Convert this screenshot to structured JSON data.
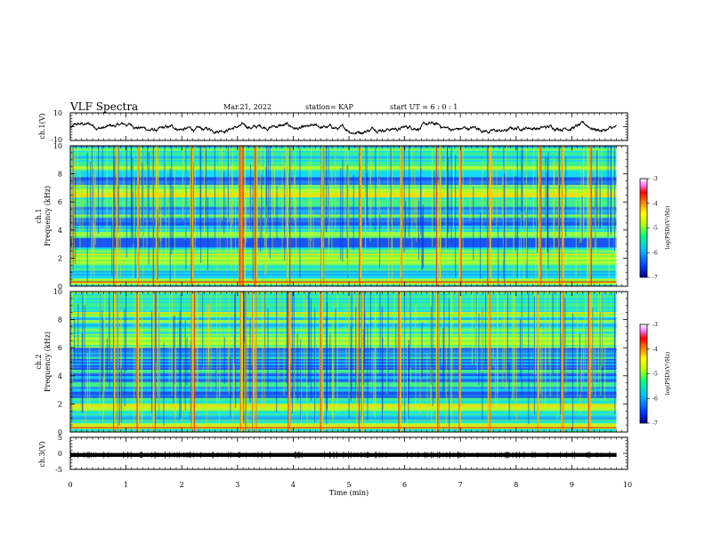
{
  "header": {
    "title": "VLF Spectra",
    "date": "Mar.21, 2022",
    "station": "station= KAP",
    "start": "start  UT =   6 : 0 : 1"
  },
  "chart_data": [
    {
      "type": "line",
      "panel": "ch1-waveform",
      "ylabel": "ch.1(V)",
      "xlim": [
        0,
        10
      ],
      "ylim": [
        -10,
        10
      ],
      "ytick_labels": [
        "-10",
        "10"
      ],
      "data_extent_min": 9.8,
      "typical_range": [
        -6,
        4
      ],
      "color": "#000000"
    },
    {
      "type": "heatmap",
      "panel": "ch1-spectrogram",
      "ylabel": "ch.1",
      "ylabel2": "Frequency (kHz)",
      "xlim": [
        0,
        10
      ],
      "ylim": [
        0,
        10
      ],
      "ytick_labels": [
        "0",
        "2",
        "4",
        "6",
        "8",
        "10"
      ],
      "data_extent_min": 9.8,
      "colorbar": {
        "label": "log(PSD)(V²/Hz)",
        "range": [
          -7,
          -3
        ],
        "tick_labels": [
          "-3",
          "-4",
          "-5",
          "-6",
          "-7"
        ],
        "colors": [
          "#000090",
          "#0040ff",
          "#00c0ff",
          "#00ff80",
          "#c0ff00",
          "#ffff00",
          "#ff8000",
          "#ff0000",
          "#ff80ff",
          "#ffffff"
        ]
      },
      "strong_bands_khz": [
        [
          0.2,
          0.6
        ],
        [
          1.7,
          2.3
        ],
        [
          6.3,
          6.9
        ],
        [
          8.3,
          8.6
        ]
      ],
      "weak_bands_khz": [
        [
          2.8,
          3.4
        ],
        [
          4.3,
          4.9
        ],
        [
          5.3,
          5.7
        ],
        [
          7.2,
          7.8
        ]
      ],
      "vertical_bursts_min": [
        0.8,
        1.2,
        1.5,
        2.2,
        3.05,
        3.1,
        3.3,
        3.9,
        4.5,
        5.2,
        5.9,
        6.6,
        7.0,
        7.5,
        8.4,
        8.8,
        9.3
      ]
    },
    {
      "type": "heatmap",
      "panel": "ch2-spectrogram",
      "ylabel": "ch.2",
      "ylabel2": "Frequency (kHz)",
      "xlim": [
        0,
        10
      ],
      "ylim": [
        0,
        10
      ],
      "ytick_labels": [
        "0",
        "2",
        "4",
        "6",
        "8",
        "10"
      ],
      "data_extent_min": 9.8,
      "colorbar": {
        "label": "log(PSD)(V²/Hz)",
        "range": [
          -7,
          -3
        ],
        "tick_labels": [
          "-3",
          "-4",
          "-5",
          "-6",
          "-7"
        ]
      },
      "strong_bands_khz": [
        [
          0.2,
          0.6
        ],
        [
          1.6,
          2.0
        ],
        [
          6.2,
          6.8
        ],
        [
          8.2,
          8.5
        ]
      ],
      "weak_bands_khz": [
        [
          2.4,
          3.2
        ],
        [
          3.6,
          4.2
        ],
        [
          4.4,
          5.2
        ],
        [
          5.4,
          6.0
        ]
      ],
      "vertical_bursts_min": [
        0.8,
        1.2,
        1.5,
        2.2,
        3.05,
        3.1,
        3.3,
        3.9,
        4.5,
        5.2,
        5.9,
        6.6,
        7.0,
        7.5,
        8.4,
        8.8,
        9.3
      ]
    },
    {
      "type": "line",
      "panel": "ch3-waveform",
      "ylabel": "ch.3(V)",
      "xlabel": "Time  (min)",
      "xlim": [
        0,
        10
      ],
      "ylim": [
        -5,
        5
      ],
      "ytick_labels": [
        "-5",
        "0",
        "5"
      ],
      "xtick_labels": [
        "0",
        "1",
        "2",
        "3",
        "4",
        "5",
        "6",
        "7",
        "8",
        "9",
        "10"
      ],
      "data_extent_min": 9.8,
      "level_v": -0.5,
      "band_halfwidth_v": 0.6,
      "color": "#000000"
    }
  ]
}
